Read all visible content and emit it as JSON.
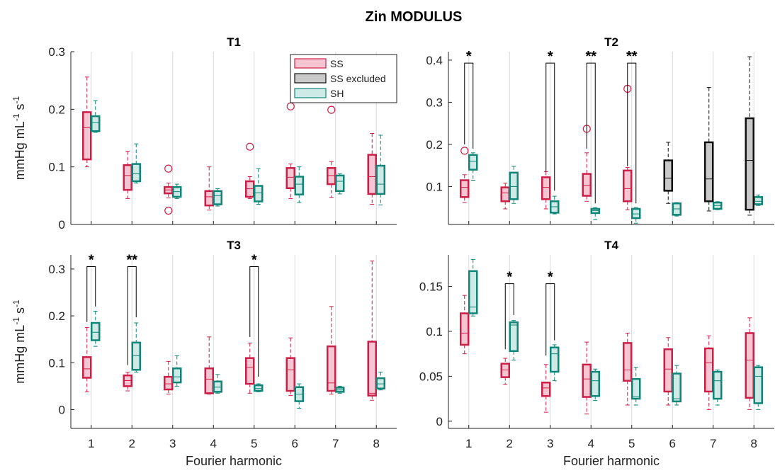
{
  "figure_title": "Zin MODULUS",
  "colors": {
    "SS": "#cc1f47",
    "SS_fill": "#f5c6d1",
    "SS_excluded": "#111111",
    "SS_excluded_fill": "#c9c9c9",
    "SH": "#0f8577",
    "SH_fill": "#cdeae6",
    "grid": "#d9d9d9",
    "axis": "#222222"
  },
  "legend": {
    "location": "top-right of T1",
    "entries": [
      {
        "key": "SS",
        "label": "SS"
      },
      {
        "key": "SS_excluded",
        "label": "SS excluded"
      },
      {
        "key": "SH",
        "label": "SH"
      }
    ]
  },
  "chart_data": [
    {
      "type": "boxplot",
      "title": "T1",
      "ylabel": "mmHg mL",
      "ylabel_sup1": "-1",
      "ylabel_mid": " s",
      "ylabel_sup2": "-1",
      "xlabel": "",
      "ylim": [
        0,
        0.3
      ],
      "yticks": [
        0,
        0.1,
        0.2,
        0.3
      ],
      "yticklabels": [
        "0",
        "0.1",
        "0.2",
        "0.3"
      ],
      "categories": [
        "1",
        "2",
        "3",
        "4",
        "5",
        "6",
        "7",
        "8"
      ],
      "show_xticklabels": false,
      "series": [
        {
          "key": "SS",
          "boxes": [
            {
              "wlo": 0.1,
              "q1": 0.113,
              "med": 0.168,
              "q3": 0.195,
              "whi": 0.256,
              "out": []
            },
            {
              "wlo": 0.045,
              "q1": 0.06,
              "med": 0.085,
              "q3": 0.103,
              "whi": 0.127,
              "out": []
            },
            {
              "wlo": 0.046,
              "q1": 0.054,
              "med": 0.06,
              "q3": 0.065,
              "whi": 0.072,
              "out": [
                0.097,
                0.024
              ]
            },
            {
              "wlo": 0.025,
              "q1": 0.033,
              "med": 0.048,
              "q3": 0.058,
              "whi": 0.1,
              "out": []
            },
            {
              "wlo": 0.045,
              "q1": 0.048,
              "med": 0.062,
              "q3": 0.075,
              "whi": 0.083,
              "out": [
                0.135
              ]
            },
            {
              "wlo": 0.045,
              "q1": 0.063,
              "med": 0.082,
              "q3": 0.098,
              "whi": 0.105,
              "out": [
                0.205
              ]
            },
            {
              "wlo": 0.047,
              "q1": 0.07,
              "med": 0.085,
              "q3": 0.098,
              "whi": 0.109,
              "out": [
                0.199
              ]
            },
            {
              "wlo": 0.035,
              "q1": 0.053,
              "med": 0.083,
              "q3": 0.121,
              "whi": 0.158,
              "out": []
            }
          ]
        },
        {
          "key": "SH",
          "boxes": [
            {
              "wlo": 0.16,
              "q1": 0.162,
              "med": 0.177,
              "q3": 0.188,
              "whi": 0.215,
              "out": []
            },
            {
              "wlo": 0.072,
              "q1": 0.075,
              "med": 0.088,
              "q3": 0.105,
              "whi": 0.14,
              "out": []
            },
            {
              "wlo": 0.045,
              "q1": 0.048,
              "med": 0.057,
              "q3": 0.065,
              "whi": 0.07,
              "out": []
            },
            {
              "wlo": 0.032,
              "q1": 0.035,
              "med": 0.05,
              "q3": 0.058,
              "whi": 0.062,
              "out": []
            },
            {
              "wlo": 0.035,
              "q1": 0.04,
              "med": 0.055,
              "q3": 0.067,
              "whi": 0.097,
              "out": []
            },
            {
              "wlo": 0.038,
              "q1": 0.052,
              "med": 0.07,
              "q3": 0.083,
              "whi": 0.1,
              "out": []
            },
            {
              "wlo": 0.053,
              "q1": 0.058,
              "med": 0.075,
              "q3": 0.085,
              "whi": 0.088,
              "out": []
            },
            {
              "wlo": 0.034,
              "q1": 0.053,
              "med": 0.07,
              "q3": 0.102,
              "whi": 0.155,
              "out": []
            }
          ]
        }
      ],
      "excluded": [],
      "significance": []
    },
    {
      "type": "boxplot",
      "title": "T2",
      "ylabel": "",
      "xlabel": "",
      "ylim": [
        0.01,
        0.42
      ],
      "yticks": [
        0.1,
        0.2,
        0.3,
        0.4
      ],
      "yticklabels": [
        "0.1",
        "0.2",
        "0.3",
        "0.4"
      ],
      "categories": [
        "1",
        "2",
        "3",
        "4",
        "5",
        "6",
        "7",
        "8"
      ],
      "show_xticklabels": false,
      "series": [
        {
          "key": "SS",
          "boxes": [
            {
              "wlo": 0.062,
              "q1": 0.075,
              "med": 0.098,
              "q3": 0.115,
              "whi": 0.128,
              "out": [
                0.185
              ]
            },
            {
              "wlo": 0.047,
              "q1": 0.065,
              "med": 0.085,
              "q3": 0.098,
              "whi": 0.108,
              "out": []
            },
            {
              "wlo": 0.047,
              "q1": 0.07,
              "med": 0.098,
              "q3": 0.122,
              "whi": 0.135,
              "out": []
            },
            {
              "wlo": 0.065,
              "q1": 0.078,
              "med": 0.103,
              "q3": 0.13,
              "whi": 0.18,
              "out": [
                0.237
              ]
            },
            {
              "wlo": 0.045,
              "q1": 0.065,
              "med": 0.095,
              "q3": 0.138,
              "whi": 0.145,
              "out": [
                0.332
              ]
            },
            null,
            null,
            null
          ]
        },
        {
          "key": "SH",
          "boxes": [
            {
              "wlo": 0.115,
              "q1": 0.14,
              "med": 0.16,
              "q3": 0.175,
              "whi": 0.18,
              "out": []
            },
            {
              "wlo": 0.06,
              "q1": 0.07,
              "med": 0.1,
              "q3": 0.133,
              "whi": 0.148,
              "out": []
            },
            {
              "wlo": 0.035,
              "q1": 0.038,
              "med": 0.052,
              "q3": 0.065,
              "whi": 0.077,
              "out": []
            },
            {
              "wlo": 0.022,
              "q1": 0.037,
              "med": 0.043,
              "q3": 0.047,
              "whi": 0.05,
              "out": []
            },
            {
              "wlo": 0.013,
              "q1": 0.025,
              "med": 0.035,
              "q3": 0.047,
              "whi": 0.05,
              "out": []
            },
            {
              "wlo": 0.03,
              "q1": 0.033,
              "med": 0.047,
              "q3": 0.06,
              "whi": 0.062,
              "out": []
            },
            {
              "wlo": 0.045,
              "q1": 0.047,
              "med": 0.055,
              "q3": 0.062,
              "whi": 0.064,
              "out": []
            },
            {
              "wlo": 0.055,
              "q1": 0.058,
              "med": 0.065,
              "q3": 0.075,
              "whi": 0.08,
              "out": []
            }
          ]
        }
      ],
      "excluded": [
        {
          "cat": 6,
          "wlo": 0.06,
          "q1": 0.09,
          "med": 0.12,
          "q3": 0.162,
          "whi": 0.205,
          "out": []
        },
        {
          "cat": 7,
          "wlo": 0.042,
          "q1": 0.065,
          "med": 0.118,
          "q3": 0.205,
          "whi": 0.335,
          "out": []
        },
        {
          "cat": 8,
          "wlo": 0.032,
          "q1": 0.045,
          "med": 0.162,
          "q3": 0.262,
          "whi": 0.408,
          "out": []
        }
      ],
      "significance": [
        {
          "cat": 1,
          "label": "*",
          "ss_y": 0.2,
          "sh_y": 0.19,
          "top": 0.393
        },
        {
          "cat": 3,
          "label": "*",
          "ss_y": 0.135,
          "sh_y": 0.09,
          "top": 0.393
        },
        {
          "cat": 4,
          "label": "**",
          "ss_y": 0.19,
          "sh_y": 0.06,
          "top": 0.393
        },
        {
          "cat": 5,
          "label": "**",
          "ss_y": 0.148,
          "sh_y": 0.06,
          "top": 0.393
        }
      ]
    },
    {
      "type": "boxplot",
      "title": "T3",
      "ylabel": "mmHg mL",
      "ylabel_sup1": "-1",
      "ylabel_mid": " s",
      "ylabel_sup2": "-1",
      "xlabel": "Fourier harmonic",
      "ylim": [
        -0.04,
        0.33
      ],
      "yticks": [
        0,
        0.1,
        0.2,
        0.3
      ],
      "yticklabels": [
        "0",
        "0.1",
        "0.2",
        "0.3"
      ],
      "categories": [
        "1",
        "2",
        "3",
        "4",
        "5",
        "6",
        "7",
        "8"
      ],
      "show_xticklabels": true,
      "series": [
        {
          "key": "SS",
          "boxes": [
            {
              "wlo": 0.038,
              "q1": 0.068,
              "med": 0.087,
              "q3": 0.112,
              "whi": 0.175,
              "out": []
            },
            {
              "wlo": 0.04,
              "q1": 0.05,
              "med": 0.062,
              "q3": 0.073,
              "whi": 0.08,
              "out": []
            },
            {
              "wlo": 0.033,
              "q1": 0.043,
              "med": 0.055,
              "q3": 0.07,
              "whi": 0.103,
              "out": []
            },
            {
              "wlo": 0.033,
              "q1": 0.035,
              "med": 0.065,
              "q3": 0.088,
              "whi": 0.155,
              "out": []
            },
            {
              "wlo": 0.035,
              "q1": 0.055,
              "med": 0.09,
              "q3": 0.11,
              "whi": 0.142,
              "out": []
            },
            {
              "wlo": 0.03,
              "q1": 0.04,
              "med": 0.085,
              "q3": 0.11,
              "whi": 0.153,
              "out": []
            },
            {
              "wlo": 0.033,
              "q1": 0.04,
              "med": 0.057,
              "q3": 0.135,
              "whi": 0.22,
              "out": []
            },
            {
              "wlo": 0.02,
              "q1": 0.03,
              "med": 0.035,
              "q3": 0.145,
              "whi": 0.317,
              "out": []
            }
          ]
        },
        {
          "key": "SH",
          "boxes": [
            {
              "wlo": 0.135,
              "q1": 0.148,
              "med": 0.165,
              "q3": 0.185,
              "whi": 0.21,
              "out": []
            },
            {
              "wlo": 0.08,
              "q1": 0.085,
              "med": 0.115,
              "q3": 0.143,
              "whi": 0.185,
              "out": []
            },
            {
              "wlo": 0.05,
              "q1": 0.058,
              "med": 0.07,
              "q3": 0.088,
              "whi": 0.115,
              "out": []
            },
            {
              "wlo": 0.035,
              "q1": 0.038,
              "med": 0.048,
              "q3": 0.06,
              "whi": 0.075,
              "out": []
            },
            {
              "wlo": 0.038,
              "q1": 0.04,
              "med": 0.045,
              "q3": 0.052,
              "whi": 0.055,
              "out": []
            },
            {
              "wlo": 0.003,
              "q1": 0.018,
              "med": 0.033,
              "q3": 0.048,
              "whi": 0.055,
              "out": []
            },
            {
              "wlo": 0.035,
              "q1": 0.038,
              "med": 0.042,
              "q3": 0.047,
              "whi": 0.05,
              "out": []
            },
            {
              "wlo": 0.042,
              "q1": 0.045,
              "med": 0.055,
              "q3": 0.067,
              "whi": 0.08,
              "out": []
            }
          ]
        }
      ],
      "excluded": [],
      "significance": [
        {
          "cat": 1,
          "label": "*",
          "ss_y": 0.187,
          "sh_y": 0.22,
          "top": 0.305
        },
        {
          "cat": 2,
          "label": "**",
          "ss_y": 0.095,
          "sh_y": 0.197,
          "top": 0.305
        },
        {
          "cat": 5,
          "label": "*",
          "ss_y": 0.155,
          "sh_y": 0.07,
          "top": 0.305
        }
      ]
    },
    {
      "type": "boxplot",
      "title": "T4",
      "ylabel": "",
      "xlabel": "Fourier harmonic",
      "ylim": [
        -0.008,
        0.185
      ],
      "yticks": [
        0,
        0.05,
        0.1,
        0.15
      ],
      "yticklabels": [
        "0",
        "0.05",
        "0.1",
        "0.15"
      ],
      "categories": [
        "1",
        "2",
        "3",
        "4",
        "5",
        "6",
        "7",
        "8"
      ],
      "show_xticklabels": true,
      "series": [
        {
          "key": "SS",
          "boxes": [
            {
              "wlo": 0.075,
              "q1": 0.085,
              "med": 0.098,
              "q3": 0.12,
              "whi": 0.14,
              "out": []
            },
            {
              "wlo": 0.041,
              "q1": 0.049,
              "med": 0.057,
              "q3": 0.064,
              "whi": 0.07,
              "out": []
            },
            {
              "wlo": 0.01,
              "q1": 0.028,
              "med": 0.037,
              "q3": 0.043,
              "whi": 0.063,
              "out": []
            },
            {
              "wlo": 0.008,
              "q1": 0.027,
              "med": 0.047,
              "q3": 0.063,
              "whi": 0.088,
              "out": []
            },
            {
              "wlo": 0.018,
              "q1": 0.045,
              "med": 0.057,
              "q3": 0.087,
              "whi": 0.098,
              "out": []
            },
            {
              "wlo": 0.018,
              "q1": 0.033,
              "med": 0.058,
              "q3": 0.08,
              "whi": 0.093,
              "out": []
            },
            {
              "wlo": 0.013,
              "q1": 0.033,
              "med": 0.065,
              "q3": 0.081,
              "whi": 0.095,
              "out": []
            },
            {
              "wlo": 0.013,
              "q1": 0.026,
              "med": 0.068,
              "q3": 0.098,
              "whi": 0.115,
              "out": []
            }
          ]
        },
        {
          "key": "SH",
          "boxes": [
            {
              "wlo": 0.117,
              "q1": 0.12,
              "med": 0.127,
              "q3": 0.167,
              "whi": 0.18,
              "out": []
            },
            {
              "wlo": 0.068,
              "q1": 0.078,
              "med": 0.107,
              "q3": 0.11,
              "whi": 0.112,
              "out": []
            },
            {
              "wlo": 0.045,
              "q1": 0.055,
              "med": 0.075,
              "q3": 0.082,
              "whi": 0.085,
              "out": []
            },
            {
              "wlo": 0.023,
              "q1": 0.028,
              "med": 0.045,
              "q3": 0.055,
              "whi": 0.058,
              "out": []
            },
            {
              "wlo": 0.018,
              "q1": 0.025,
              "med": 0.027,
              "q3": 0.047,
              "whi": 0.06,
              "out": []
            },
            {
              "wlo": 0.018,
              "q1": 0.022,
              "med": 0.025,
              "q3": 0.053,
              "whi": 0.062,
              "out": []
            },
            {
              "wlo": 0.018,
              "q1": 0.025,
              "med": 0.045,
              "q3": 0.055,
              "whi": 0.057,
              "out": []
            },
            {
              "wlo": 0.013,
              "q1": 0.02,
              "med": 0.05,
              "q3": 0.06,
              "whi": 0.062,
              "out": []
            }
          ]
        }
      ],
      "excluded": [],
      "significance": [
        {
          "cat": 2,
          "label": "*",
          "ss_y": 0.08,
          "sh_y": 0.118,
          "top": 0.153
        },
        {
          "cat": 3,
          "label": "*",
          "ss_y": 0.073,
          "sh_y": 0.09,
          "top": 0.153
        }
      ]
    }
  ]
}
